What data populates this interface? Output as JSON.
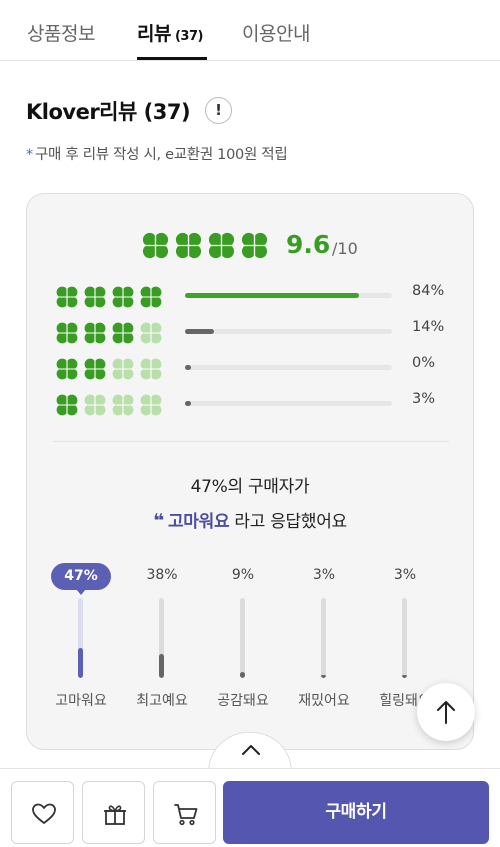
{
  "tabs": [
    {
      "label": "상품정보",
      "count": ""
    },
    {
      "label": "리뷰",
      "count": "(37)"
    },
    {
      "label": "이용안내",
      "count": ""
    }
  ],
  "review": {
    "title": "Klover리뷰 (37)",
    "info_icon_text": "!",
    "note_star": "*",
    "note": "구매 후 리뷰 작성 시, e교환권 100원 적립"
  },
  "overall": {
    "score": "9.6",
    "max": "/10",
    "clovers_filled": 4,
    "icon": "clover-icon"
  },
  "distribution": [
    {
      "clovers": 4,
      "percent_label": "84%",
      "percent": 84
    },
    {
      "clovers": 3,
      "percent_label": "14%",
      "percent": 14
    },
    {
      "clovers": 2,
      "percent_label": "0%",
      "percent": 0
    },
    {
      "clovers": 1,
      "percent_label": "3%",
      "percent": 3
    }
  ],
  "summary": {
    "line1": "47%의 구매자가",
    "quote_mark": "❝",
    "keyword": "고마워요",
    "line2_suffix": " 라고 응답했어요"
  },
  "reactions": [
    {
      "label": "고마워요",
      "percent_label": "47%",
      "percent": 47,
      "active": true
    },
    {
      "label": "최고예요",
      "percent_label": "38%",
      "percent": 38,
      "active": false
    },
    {
      "label": "공감돼요",
      "percent_label": "9%",
      "percent": 9,
      "active": false
    },
    {
      "label": "재밌어요",
      "percent_label": "3%",
      "percent": 3,
      "active": false
    },
    {
      "label": "힐링돼요",
      "percent_label": "3%",
      "percent": 3,
      "active": false
    }
  ],
  "bottom": {
    "buy_label": "구매하기",
    "icons": [
      "heart-icon",
      "gift-icon",
      "cart-icon"
    ]
  },
  "colors": {
    "clover_green": "#3a9d23",
    "clover_light": "#b9dfab",
    "bar_green": "#3fa32a",
    "bar_gray": "#7a7a7a",
    "accent_purple": "#5c60b5",
    "buy_button": "#5456b0"
  }
}
